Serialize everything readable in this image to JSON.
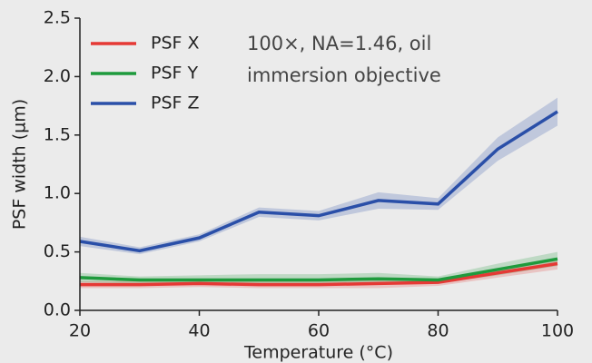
{
  "chart_data": {
    "type": "line",
    "xlabel": "Temperature (°C)",
    "ylabel": "PSF width (µm)",
    "annotation": [
      "100×, NA=1.46, oil",
      "immersion objective"
    ],
    "x": [
      20,
      30,
      40,
      50,
      60,
      70,
      80,
      90,
      100
    ],
    "series": [
      {
        "name": "PSF X",
        "color": "#e53935",
        "values": [
          0.22,
          0.22,
          0.23,
          0.22,
          0.22,
          0.23,
          0.24,
          0.32,
          0.4
        ],
        "error": [
          0.03,
          0.03,
          0.03,
          0.03,
          0.03,
          0.04,
          0.03,
          0.04,
          0.05
        ]
      },
      {
        "name": "PSF Y",
        "color": "#1e9a3c",
        "values": [
          0.28,
          0.26,
          0.26,
          0.26,
          0.26,
          0.27,
          0.26,
          0.35,
          0.44
        ],
        "error": [
          0.04,
          0.03,
          0.04,
          0.05,
          0.05,
          0.05,
          0.03,
          0.05,
          0.06
        ]
      },
      {
        "name": "PSF Z",
        "color": "#2a4fa8",
        "values": [
          0.59,
          0.51,
          0.62,
          0.84,
          0.81,
          0.94,
          0.91,
          1.38,
          1.7
        ],
        "error": [
          0.04,
          0.03,
          0.03,
          0.04,
          0.04,
          0.07,
          0.05,
          0.1,
          0.12
        ]
      }
    ],
    "xlim": [
      20,
      100
    ],
    "xticks": [
      20,
      40,
      60,
      80,
      100
    ],
    "ylim": [
      0,
      2.5
    ],
    "yticks": [
      {
        "value": 0,
        "label": "0.0"
      },
      0.5,
      {
        "value": 1,
        "label": "1.0"
      },
      1.5,
      {
        "value": 2,
        "label": "2.0"
      },
      2.5
    ],
    "legend": "upper left"
  }
}
